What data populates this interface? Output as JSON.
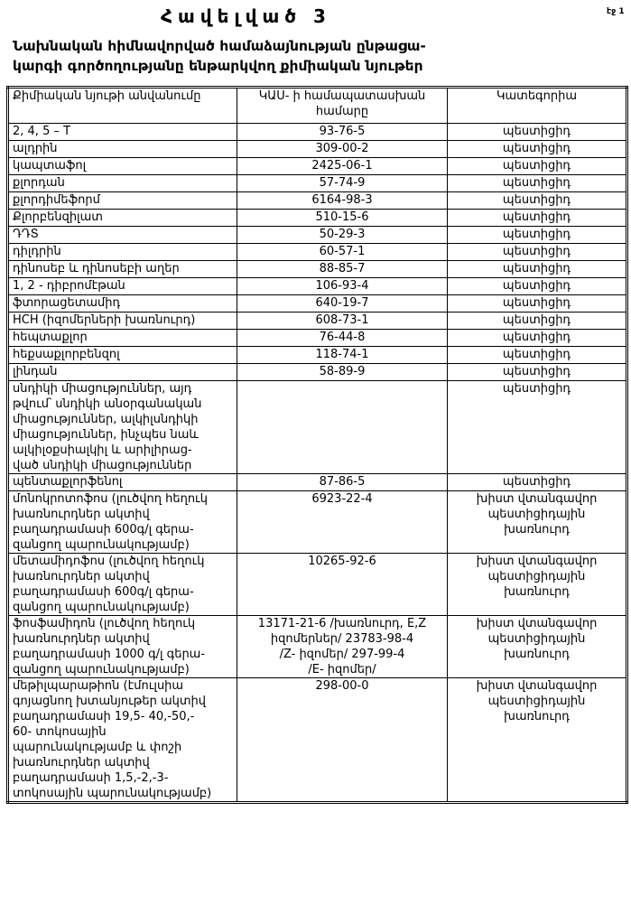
{
  "annex_title": "Հավելված 3",
  "page_label": "էջ 1",
  "heading": "Նախնական հիմնավորված համաձայնության ընթացա-\nկարգի գործողությանը ենթարկվող քիմիական նյութեր",
  "table": {
    "headers": [
      "Քիմիական նյութի անվանումը",
      "ԿԱՍ- ի համապատասխան\nհամարը",
      "Կատեգորիա"
    ],
    "rows": [
      {
        "name": "2, 4, 5 – T",
        "cas": "93-76-5",
        "category": "պեստիցիդ"
      },
      {
        "name": "ալդրին",
        "cas": "309-00-2",
        "category": "պեստիցիդ"
      },
      {
        "name": "կապտաֆոլ",
        "cas": "2425-06-1",
        "category": "պեստիցիդ"
      },
      {
        "name": "քլորդան",
        "cas": "57-74-9",
        "category": "պեստիցիդ"
      },
      {
        "name": "քլորդիմեֆորմ",
        "cas": "6164-98-3",
        "category": "պեստիցիդ"
      },
      {
        "name": "Քլորբենզիլատ",
        "cas": "510-15-6",
        "category": "պեստիցիդ"
      },
      {
        "name": "ԴԴՏ",
        "cas": "50-29-3",
        "category": "պեստիցիդ"
      },
      {
        "name": "դիլդրին",
        "cas": "60-57-1",
        "category": "պեստիցիդ"
      },
      {
        "name": "դինոսեբ և դինոսեբի աղեր",
        "cas": "88-85-7",
        "category": "պեստիցիդ"
      },
      {
        "name": "1, 2 - դիբրոմէթան",
        "cas": "106-93-4",
        "category": "պեստիցիդ"
      },
      {
        "name": "ֆտորացետամիդ",
        "cas": "640-19-7",
        "category": "պեստիցիդ"
      },
      {
        "name": "HCH (իզոմերների խառնուրդ)",
        "cas": "608-73-1",
        "category": "պեստիցիդ"
      },
      {
        "name": "հեպտաքլոր",
        "cas": "76-44-8",
        "category": "պեստիցիդ"
      },
      {
        "name": "հեքսաքլորբենզոլ",
        "cas": "118-74-1",
        "category": "պեստիցիդ"
      },
      {
        "name": "լինդան",
        "cas": "58-89-9",
        "category": "պեստիցիդ"
      },
      {
        "name": "սնդիկի միացություններ, այդ\nթվում՝ սնդիկի անօրգանական\nմիացություններ, ալկիլսնդիկի\nմիացություններ, ինչպես նաև\nալկիլօքսիալկիլ և արիլիրաց-\nված սնդիկի միացություններ",
        "cas": "",
        "category": "պեստիցիդ"
      },
      {
        "name": "պենտաքլորֆենոլ",
        "cas": "87-86-5",
        "category": "պեստիցիդ"
      },
      {
        "name": "մոնոկրոտոֆոս (լուծվող հեղուկ\nխառնուրդներ ակտիվ\nբաղադրամասի  600գ/լ գերա-\nզանցող պարունակությամբ)",
        "cas": "6923-22-4",
        "category": "խիստ վտանգավոր\nպեստիցիդային\nխառնուրդ"
      },
      {
        "name": "մետամիդոֆոս (լուծվող հեղուկ\nխառնուրդներ ակտիվ\nբաղադրամասի  600գ/լ գերա-\nզանցող պարունակությամբ)",
        "cas": "10265-92-6",
        "category": "խիստ վտանգավոր\nպեստիցիդային\nխառնուրդ"
      },
      {
        "name": "ֆոսֆամիդոն (լուծվող հեղուկ\nխառնուրդներ ակտիվ\nբաղադրամասի 1000 գ/լ  գերա-\nզանցող պարունակությամբ)",
        "cas": "13171-21-6 /խառնուրդ, E,Z\nիզոմերներ/  23783-98-4\n/Z- իզոմեր/ 297-99-4\n/E- իզոմեր/",
        "category": "խիստ վտանգավոր\nպեստիցիդային\nխառնուրդ"
      },
      {
        "name": "մեթիլպարաթիոն (էմուլսիա\nգոյացնող  խտանյութեր ակտիվ\nբաղադրամասի 19,5- 40,-50,-\n60- տոկոսային\nպարունակությամբ և փոշի\nխառնուրդներ ակտիվ\nբաղադրամասի 1,5,-2,-3-\nտոկոսային պարունակությամբ)",
        "cas": "298-00-0",
        "category": "խիստ վտանգավոր\nպեստիցիդային\nխառնուրդ"
      }
    ]
  }
}
